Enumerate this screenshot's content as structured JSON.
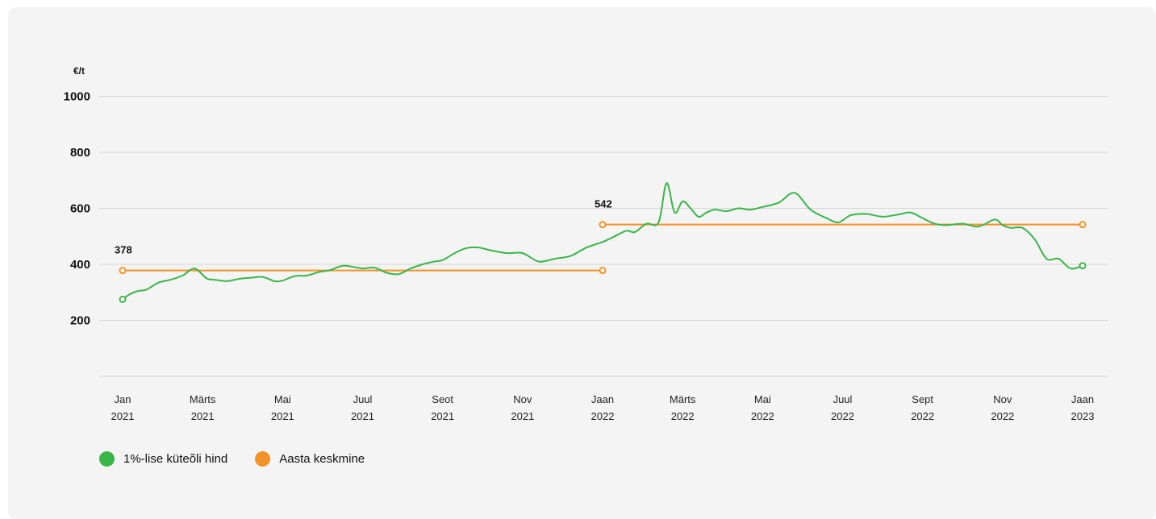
{
  "chart_data": {
    "type": "line",
    "unit_label": "€/t",
    "y_ticks": [
      1000,
      800,
      600,
      400,
      200
    ],
    "ylim": [
      0,
      1000
    ],
    "x_ticks": [
      {
        "month": "Jan",
        "year": "2021"
      },
      {
        "month": "Märts",
        "year": "2021"
      },
      {
        "month": "Mai",
        "year": "2021"
      },
      {
        "month": "Juul",
        "year": "2021"
      },
      {
        "month": "Seot",
        "year": "2021"
      },
      {
        "month": "Nov",
        "year": "2021"
      },
      {
        "month": "Jaan",
        "year": "2022"
      },
      {
        "month": "Märts",
        "year": "2022"
      },
      {
        "month": "Mai",
        "year": "2022"
      },
      {
        "month": "Juul",
        "year": "2022"
      },
      {
        "month": "Sept",
        "year": "2022"
      },
      {
        "month": "Nov",
        "year": "2022"
      },
      {
        "month": "Jaan",
        "year": "2023"
      }
    ],
    "grid": true,
    "legend_position": "bottom-left",
    "series": [
      {
        "name": "1%-lise küteõli hind",
        "color": "#3bb44a",
        "x": [
          0,
          0.1,
          0.2,
          0.3,
          0.45,
          0.6,
          0.75,
          0.9,
          1.05,
          1.15,
          1.3,
          1.45,
          1.6,
          1.75,
          1.9,
          2.0,
          2.15,
          2.3,
          2.45,
          2.6,
          2.75,
          2.9,
          3.0,
          3.15,
          3.3,
          3.45,
          3.6,
          3.75,
          3.9,
          4.0,
          4.15,
          4.3,
          4.45,
          4.6,
          4.8,
          5.0,
          5.2,
          5.4,
          5.6,
          5.8,
          6.0,
          6.15,
          6.3,
          6.4,
          6.55,
          6.7,
          6.8,
          6.9,
          7.0,
          7.1,
          7.2,
          7.3,
          7.4,
          7.55,
          7.7,
          7.85,
          8.0,
          8.2,
          8.4,
          8.6,
          8.8,
          8.95,
          9.1,
          9.3,
          9.5,
          9.7,
          9.85,
          10.0,
          10.15,
          10.3,
          10.5,
          10.7,
          10.9,
          11.0,
          11.1,
          11.25,
          11.4,
          11.55,
          11.7,
          11.85,
          12.0
        ],
        "y": [
          275,
          295,
          305,
          310,
          335,
          345,
          360,
          385,
          350,
          345,
          340,
          348,
          352,
          355,
          340,
          342,
          358,
          360,
          372,
          380,
          395,
          390,
          385,
          388,
          370,
          365,
          385,
          400,
          410,
          415,
          440,
          458,
          460,
          450,
          440,
          440,
          410,
          420,
          430,
          460,
          480,
          500,
          520,
          515,
          545,
          550,
          690,
          585,
          625,
          600,
          570,
          585,
          595,
          590,
          600,
          595,
          605,
          620,
          655,
          595,
          565,
          550,
          575,
          580,
          570,
          578,
          585,
          565,
          545,
          540,
          545,
          535,
          560,
          540,
          530,
          530,
          490,
          420,
          420,
          385,
          395
        ]
      },
      {
        "name": "Aasta keskmine",
        "color": "#f39226",
        "segments": [
          {
            "x": [
              0,
              6
            ],
            "y": 378,
            "label": "378"
          },
          {
            "x": [
              6,
              12
            ],
            "y": 542,
            "label": "542"
          }
        ]
      }
    ]
  }
}
